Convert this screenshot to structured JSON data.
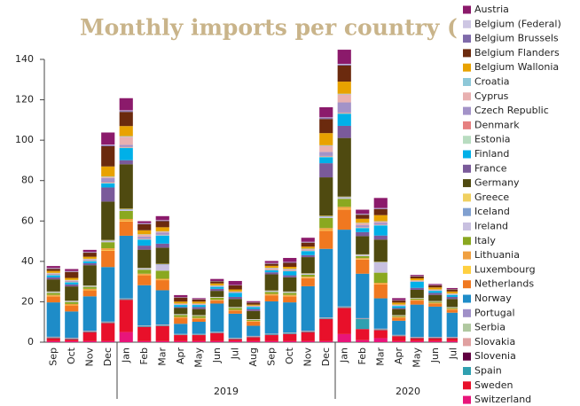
{
  "chart_data": {
    "type": "stacked_bar",
    "title": "Monthly imports per country (TWh)",
    "categories": [
      "Sep",
      "Oct",
      "Nov",
      "Dec",
      "Jan",
      "Feb",
      "Mar",
      "Apr",
      "May",
      "Jun",
      "Jul",
      "Aug",
      "Sep",
      "Oct",
      "Nov",
      "Dec",
      "Jan",
      "Feb",
      "Mar",
      "Apr",
      "May",
      "Jun",
      "Jul",
      "Aug"
    ],
    "groups": [
      {
        "label": null,
        "size": 4
      },
      {
        "label": "2019",
        "size": 12
      },
      {
        "label": "2020",
        "size": 8
      }
    ],
    "ylim": [
      0,
      140
    ],
    "yticks": [
      0,
      20,
      40,
      60,
      80,
      100,
      120,
      140
    ],
    "grid": false,
    "legend": "right",
    "series": [
      {
        "name": "Austria",
        "color": "#8b1a6b",
        "values": [
          1,
          1,
          1,
          6,
          6,
          1,
          2,
          1,
          0.5,
          1,
          2,
          0.5,
          1,
          2,
          2,
          5,
          7,
          2,
          5,
          1,
          0.5,
          0.5,
          0.5,
          0.5
        ]
      },
      {
        "name": "Belgium (Federal)",
        "color": "#cdc6e3",
        "values": [
          0.2,
          0.2,
          0.2,
          0.3,
          0.3,
          0.2,
          0.2,
          0.1,
          0.1,
          0.1,
          0.1,
          0.1,
          0.2,
          0.2,
          0.2,
          0.3,
          0.3,
          0.2,
          0.2,
          0.1,
          0.1,
          0.1,
          0.1,
          0.1
        ]
      },
      {
        "name": "Belgium Brussels",
        "color": "#7f6aaa",
        "values": [
          0.2,
          0.2,
          0.2,
          0.5,
          0.5,
          0.3,
          0.3,
          0.1,
          0.1,
          0.1,
          0.1,
          0.1,
          0.2,
          0.2,
          0.2,
          0.5,
          0.5,
          0.3,
          0.3,
          0.1,
          0.1,
          0.1,
          0.1,
          0.1
        ]
      },
      {
        "name": "Belgium Flanders",
        "color": "#6b2a0e",
        "values": [
          1,
          3,
          2,
          10,
          7,
          3,
          3,
          2,
          1,
          1,
          2,
          1,
          1,
          2,
          2,
          7,
          8,
          2,
          3,
          1,
          1,
          1,
          1,
          0.5
        ]
      },
      {
        "name": "Belgium Wallonia",
        "color": "#e8a200",
        "values": [
          1,
          1,
          1,
          5,
          5,
          2,
          2,
          1,
          1,
          1,
          1,
          0.5,
          1,
          1,
          1,
          6,
          6,
          2,
          3,
          1,
          1,
          1,
          1,
          0.5
        ]
      },
      {
        "name": "Croatia",
        "color": "#8ec8d8",
        "values": [
          0.2,
          0.2,
          0.2,
          0.3,
          0.3,
          0.2,
          0.2,
          0.1,
          0.1,
          0.1,
          0.1,
          0.1,
          0.2,
          0.2,
          0.2,
          0.3,
          0.3,
          0.2,
          0.2,
          0.1,
          0.1,
          0.1,
          0.1,
          0.1
        ]
      },
      {
        "name": "Cyprus",
        "color": "#e8b0b0",
        "values": [
          0.3,
          0.3,
          0.3,
          0.5,
          4,
          1,
          0.5,
          0.2,
          0.2,
          0.2,
          0.2,
          0.2,
          0.3,
          0.3,
          0.3,
          3,
          4,
          1,
          0.5,
          0.2,
          0.2,
          0.2,
          0.2,
          0.2
        ]
      },
      {
        "name": "Czech Republic",
        "color": "#a393c8",
        "values": [
          0.3,
          0.3,
          0.3,
          2,
          1,
          1,
          1,
          0.2,
          0.2,
          0.2,
          0.2,
          0.2,
          0.3,
          0.3,
          0.3,
          2,
          5,
          1,
          1,
          0.2,
          0.2,
          0.2,
          0.2,
          0.2
        ]
      },
      {
        "name": "Denmark",
        "color": "#e68080",
        "values": [
          0.2,
          0.2,
          0.2,
          0.3,
          0.3,
          0.2,
          0.2,
          0.1,
          0.1,
          0.1,
          0.1,
          0.1,
          0.2,
          0.2,
          0.2,
          0.3,
          0.3,
          0.2,
          0.2,
          0.1,
          0.1,
          0.1,
          0.1,
          0.1
        ]
      },
      {
        "name": "Estonia",
        "color": "#b8dcc0",
        "values": [
          0.2,
          0.2,
          0.2,
          0.3,
          0.3,
          0.2,
          0.2,
          0.1,
          0.1,
          0.1,
          0.1,
          0.1,
          0.2,
          0.2,
          0.2,
          0.3,
          0.3,
          0.2,
          0.2,
          0.1,
          0.1,
          0.1,
          0.1,
          0.1
        ]
      },
      {
        "name": "Finland",
        "color": "#00b0e8",
        "values": [
          1,
          1,
          1,
          2,
          6,
          3,
          4,
          1,
          1,
          1,
          2,
          1,
          1,
          2,
          2,
          3,
          6,
          2,
          5,
          1,
          3,
          1,
          1,
          0.5
        ]
      },
      {
        "name": "France",
        "color": "#7a5a9a",
        "values": [
          1,
          1,
          1,
          7,
          2,
          2,
          2,
          0.5,
          1,
          1,
          1,
          1,
          1,
          1,
          1,
          7,
          6,
          2,
          2,
          0.5,
          1,
          1,
          1,
          0.5
        ]
      },
      {
        "name": "Germany",
        "color": "#4f4a10",
        "values": [
          6,
          7,
          10,
          19,
          22,
          9,
          8,
          3,
          3,
          3,
          4,
          4,
          8,
          7,
          8,
          19,
          29,
          9,
          11,
          3,
          4,
          3,
          4,
          6
        ]
      },
      {
        "name": "Greece",
        "color": "#f0d060",
        "values": [
          0.2,
          0.2,
          0.2,
          0.3,
          0.3,
          0.2,
          0.2,
          0.1,
          0.1,
          0.1,
          0.1,
          0.1,
          0.2,
          0.2,
          0.2,
          0.3,
          0.3,
          0.2,
          0.2,
          0.1,
          0.1,
          0.1,
          0.1,
          0.1
        ]
      },
      {
        "name": "Iceland",
        "color": "#80a0d0",
        "values": [
          0.2,
          0.2,
          0.2,
          0.3,
          0.3,
          0.2,
          0.2,
          0.1,
          0.1,
          0.1,
          0.1,
          0.1,
          0.2,
          0.2,
          0.2,
          0.3,
          0.3,
          0.2,
          0.2,
          0.1,
          0.1,
          0.1,
          0.1,
          0.1
        ]
      },
      {
        "name": "Ireland",
        "color": "#c8c0e0",
        "values": [
          0.3,
          0.3,
          0.3,
          0.5,
          0.5,
          0.5,
          3,
          0.2,
          0.2,
          0.2,
          0.2,
          0.2,
          0.3,
          0.3,
          0.3,
          0.5,
          0.5,
          0.5,
          5,
          0.2,
          0.2,
          0.2,
          0.2,
          0.2
        ]
      },
      {
        "name": "Italy",
        "color": "#8aa820",
        "values": [
          1,
          1,
          1,
          3,
          4,
          2,
          4,
          1,
          1,
          1,
          1,
          0.5,
          1,
          1,
          1,
          5,
          4,
          1,
          5,
          0.5,
          0.5,
          0.5,
          0.5,
          0.5
        ]
      },
      {
        "name": "Lithuania",
        "color": "#f0a040",
        "values": [
          0.5,
          0.5,
          0.5,
          1,
          1,
          0.5,
          0.5,
          0.3,
          0.3,
          0.3,
          0.3,
          0.3,
          0.5,
          0.5,
          0.5,
          1,
          1,
          0.5,
          0.5,
          0.3,
          0.3,
          0.3,
          0.3,
          0.3
        ]
      },
      {
        "name": "Luxembourg",
        "color": "#ffd040",
        "values": [
          0.2,
          0.2,
          0.2,
          0.3,
          0.3,
          0.2,
          0.2,
          0.1,
          0.1,
          0.1,
          0.1,
          0.1,
          0.2,
          0.2,
          0.2,
          0.3,
          0.3,
          0.2,
          0.2,
          0.1,
          0.1,
          0.1,
          0.1,
          0.1
        ]
      },
      {
        "name": "Netherlands",
        "color": "#f07820",
        "values": [
          3,
          3,
          3,
          8,
          7,
          5,
          5,
          3,
          1.5,
          1.5,
          1.5,
          2,
          3,
          3,
          4,
          9,
          10,
          7,
          7,
          1.5,
          2,
          1.5,
          1.5,
          1
        ]
      },
      {
        "name": "Norway",
        "color": "#1e8cc8",
        "values": [
          17,
          13,
          17,
          27,
          31,
          20,
          17,
          5,
          6,
          14,
          12,
          5,
          16,
          15,
          22,
          34,
          38,
          22,
          15,
          7,
          16,
          15,
          12,
          8
        ]
      },
      {
        "name": "Portugal",
        "color": "#a090c8",
        "values": [
          0.1,
          0.1,
          0.1,
          0.1,
          0.1,
          0.1,
          0.1,
          0.1,
          0.1,
          0.1,
          0.1,
          0.1,
          0.1,
          0.1,
          0.1,
          0.1,
          0.1,
          0.1,
          0.1,
          0.1,
          0.1,
          0.1,
          0.1,
          0.1
        ]
      },
      {
        "name": "Serbia",
        "color": "#b0c8a0",
        "values": [
          0.1,
          0.1,
          0.1,
          0.1,
          0.1,
          0.1,
          0.1,
          0.1,
          0.1,
          0.1,
          0.1,
          0.1,
          0.1,
          0.1,
          0.1,
          0.1,
          0.1,
          0.1,
          0.1,
          0.1,
          0.1,
          0.1,
          0.1,
          0.1
        ]
      },
      {
        "name": "Slovakia",
        "color": "#e0a0a0",
        "values": [
          0.1,
          0.1,
          0.1,
          0.1,
          0.1,
          0.1,
          0.1,
          0.1,
          0.1,
          0.1,
          0.1,
          0.1,
          0.1,
          0.1,
          0.1,
          0.1,
          0.1,
          0.1,
          0.1,
          0.1,
          0.1,
          0.1,
          0.1,
          0.1
        ]
      },
      {
        "name": "Slovenia",
        "color": "#600040",
        "values": [
          0.1,
          0.1,
          0.1,
          0.1,
          0.1,
          0.1,
          0.1,
          0.1,
          0.1,
          0.1,
          0.1,
          0.1,
          0.1,
          0.1,
          0.1,
          0.1,
          0.1,
          0.1,
          0.1,
          0.1,
          0.1,
          0.1,
          0.1,
          0.1
        ]
      },
      {
        "name": "Spain",
        "color": "#30a0b0",
        "values": [
          0.3,
          0.3,
          0.3,
          0.3,
          0.3,
          0.3,
          0.3,
          0.2,
          0.2,
          0.2,
          0.2,
          0.2,
          0.3,
          0.3,
          0.3,
          0.3,
          0.3,
          5,
          0.3,
          0.2,
          0.2,
          0.2,
          0.2,
          0.2
        ]
      },
      {
        "name": "Sweden",
        "color": "#e8102a",
        "values": [
          1.5,
          1,
          4.5,
          9,
          16,
          7,
          7.5,
          3,
          3,
          4,
          1,
          2,
          3,
          3.5,
          4.5,
          11,
          13,
          5.5,
          4,
          2.5,
          1.5,
          1.5,
          1.5,
          1.5
        ]
      },
      {
        "name": "Switzerland",
        "color": "#e8157a",
        "values": [
          0.5,
          0.5,
          0.5,
          0.5,
          5,
          0.5,
          0.5,
          0.5,
          0.5,
          0.5,
          0.5,
          0.5,
          0.5,
          0.5,
          0.5,
          0.5,
          4,
          1,
          2,
          0.5,
          0.5,
          0.5,
          0.5,
          0.5
        ]
      }
    ]
  }
}
